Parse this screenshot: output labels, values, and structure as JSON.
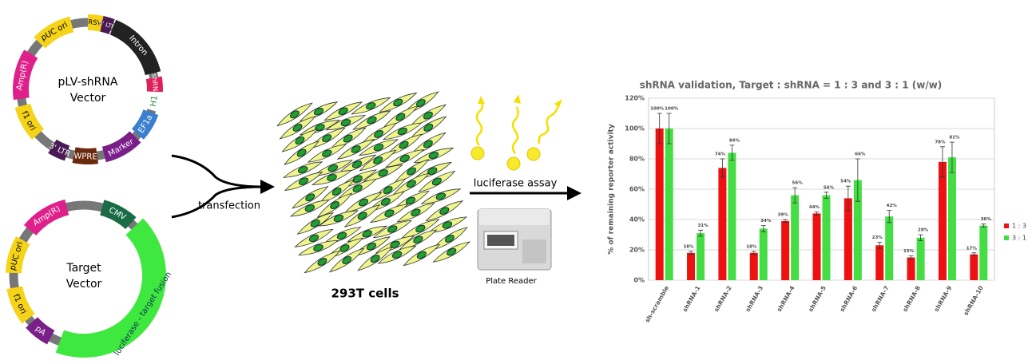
{
  "plasmids": [
    {
      "title_lines": [
        "pLV-shRNA",
        "Vector"
      ],
      "features": [
        "RSV",
        "5' LTR",
        "Intron",
        "shRNA",
        "H1",
        "EF1a",
        "Marker",
        "WPRE",
        "3' LTR",
        "f1 ori",
        "Amp(R)",
        "pUC ori"
      ]
    },
    {
      "title_lines": [
        "Target",
        "Vector"
      ],
      "features": [
        "CMV",
        "luciferase - target fusion",
        "pA",
        "f1 ori",
        "pUC ori",
        "Amp(R)"
      ]
    }
  ],
  "steps": [
    "transfection",
    "luciferase assay"
  ],
  "cells_label": "293T cells",
  "instrument_label": "Plate Reader",
  "chart_data": {
    "type": "bar",
    "title": "shRNA validation, Target : shRNA = 1 : 3 and 3 : 1 (w/w)",
    "y_label": "% of remaining reporter activity",
    "categories": [
      "sh-scramble",
      "shRNA-1",
      "shRNA-2",
      "shRNA-3",
      "shRNA-4",
      "shRNA-5",
      "shRNA-6",
      "shRNA-7",
      "shRNA-8",
      "shRNA-9",
      "shRNA-10"
    ],
    "series": [
      {
        "name": "1 : 3",
        "color": "#ee1111",
        "values": [
          100,
          18,
          74,
          18,
          39,
          44,
          54,
          23,
          15,
          78,
          17
        ],
        "errors": [
          10,
          1,
          6,
          1,
          1,
          1,
          8,
          2,
          1,
          10,
          1
        ],
        "value_labels": [
          "100%",
          "18%",
          "74%",
          "18%",
          "39%",
          "44%",
          "54%",
          "23%",
          "15%",
          "78%",
          "17%"
        ]
      },
      {
        "name": "3 : 1",
        "color": "#44dd44",
        "values": [
          100,
          31,
          84,
          34,
          56,
          56,
          66,
          42,
          28,
          81,
          36
        ],
        "errors": [
          10,
          2,
          5,
          2,
          5,
          2,
          14,
          4,
          2,
          10,
          1
        ],
        "value_labels": [
          "100%",
          "31%",
          "84%",
          "34%",
          "56%",
          "56%",
          "66%",
          "42%",
          "28%",
          "81%",
          "36%"
        ]
      }
    ],
    "ylim": [
      0,
      120
    ],
    "yticks": [
      {
        "value": 0,
        "label": "0%"
      },
      {
        "value": 20,
        "label": "20%"
      },
      {
        "value": 40,
        "label": "40%"
      },
      {
        "value": 60,
        "label": "60%"
      },
      {
        "value": 80,
        "label": "80%"
      },
      {
        "value": 100,
        "label": "100%"
      },
      {
        "value": 120,
        "label": "120%"
      }
    ],
    "grid": true,
    "legend": "right"
  }
}
